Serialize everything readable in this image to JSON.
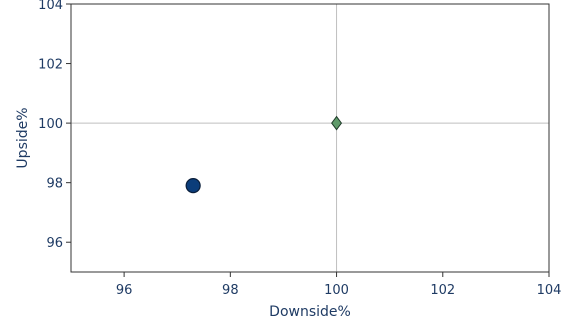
{
  "chart_data": {
    "type": "scatter",
    "xlabel": "Downside%",
    "ylabel": "Upside%",
    "xlim": [
      95,
      104
    ],
    "ylim": [
      95,
      104
    ],
    "xticks": [
      96,
      98,
      100,
      102,
      104
    ],
    "yticks": [
      96,
      98,
      100,
      102,
      104
    ],
    "reference_lines": {
      "x": 100,
      "y": 100
    },
    "grid": false,
    "series": [
      {
        "marker": "circle",
        "color": "#0b3d7a",
        "points": [
          {
            "x": 97.3,
            "y": 97.9
          }
        ]
      },
      {
        "marker": "diamond",
        "color": "#5f9a6a",
        "points": [
          {
            "x": 100.0,
            "y": 100.0
          }
        ]
      }
    ]
  },
  "colors": {
    "axis": "#333333",
    "text": "#1f3b64",
    "reference": "#bfbfbf"
  }
}
